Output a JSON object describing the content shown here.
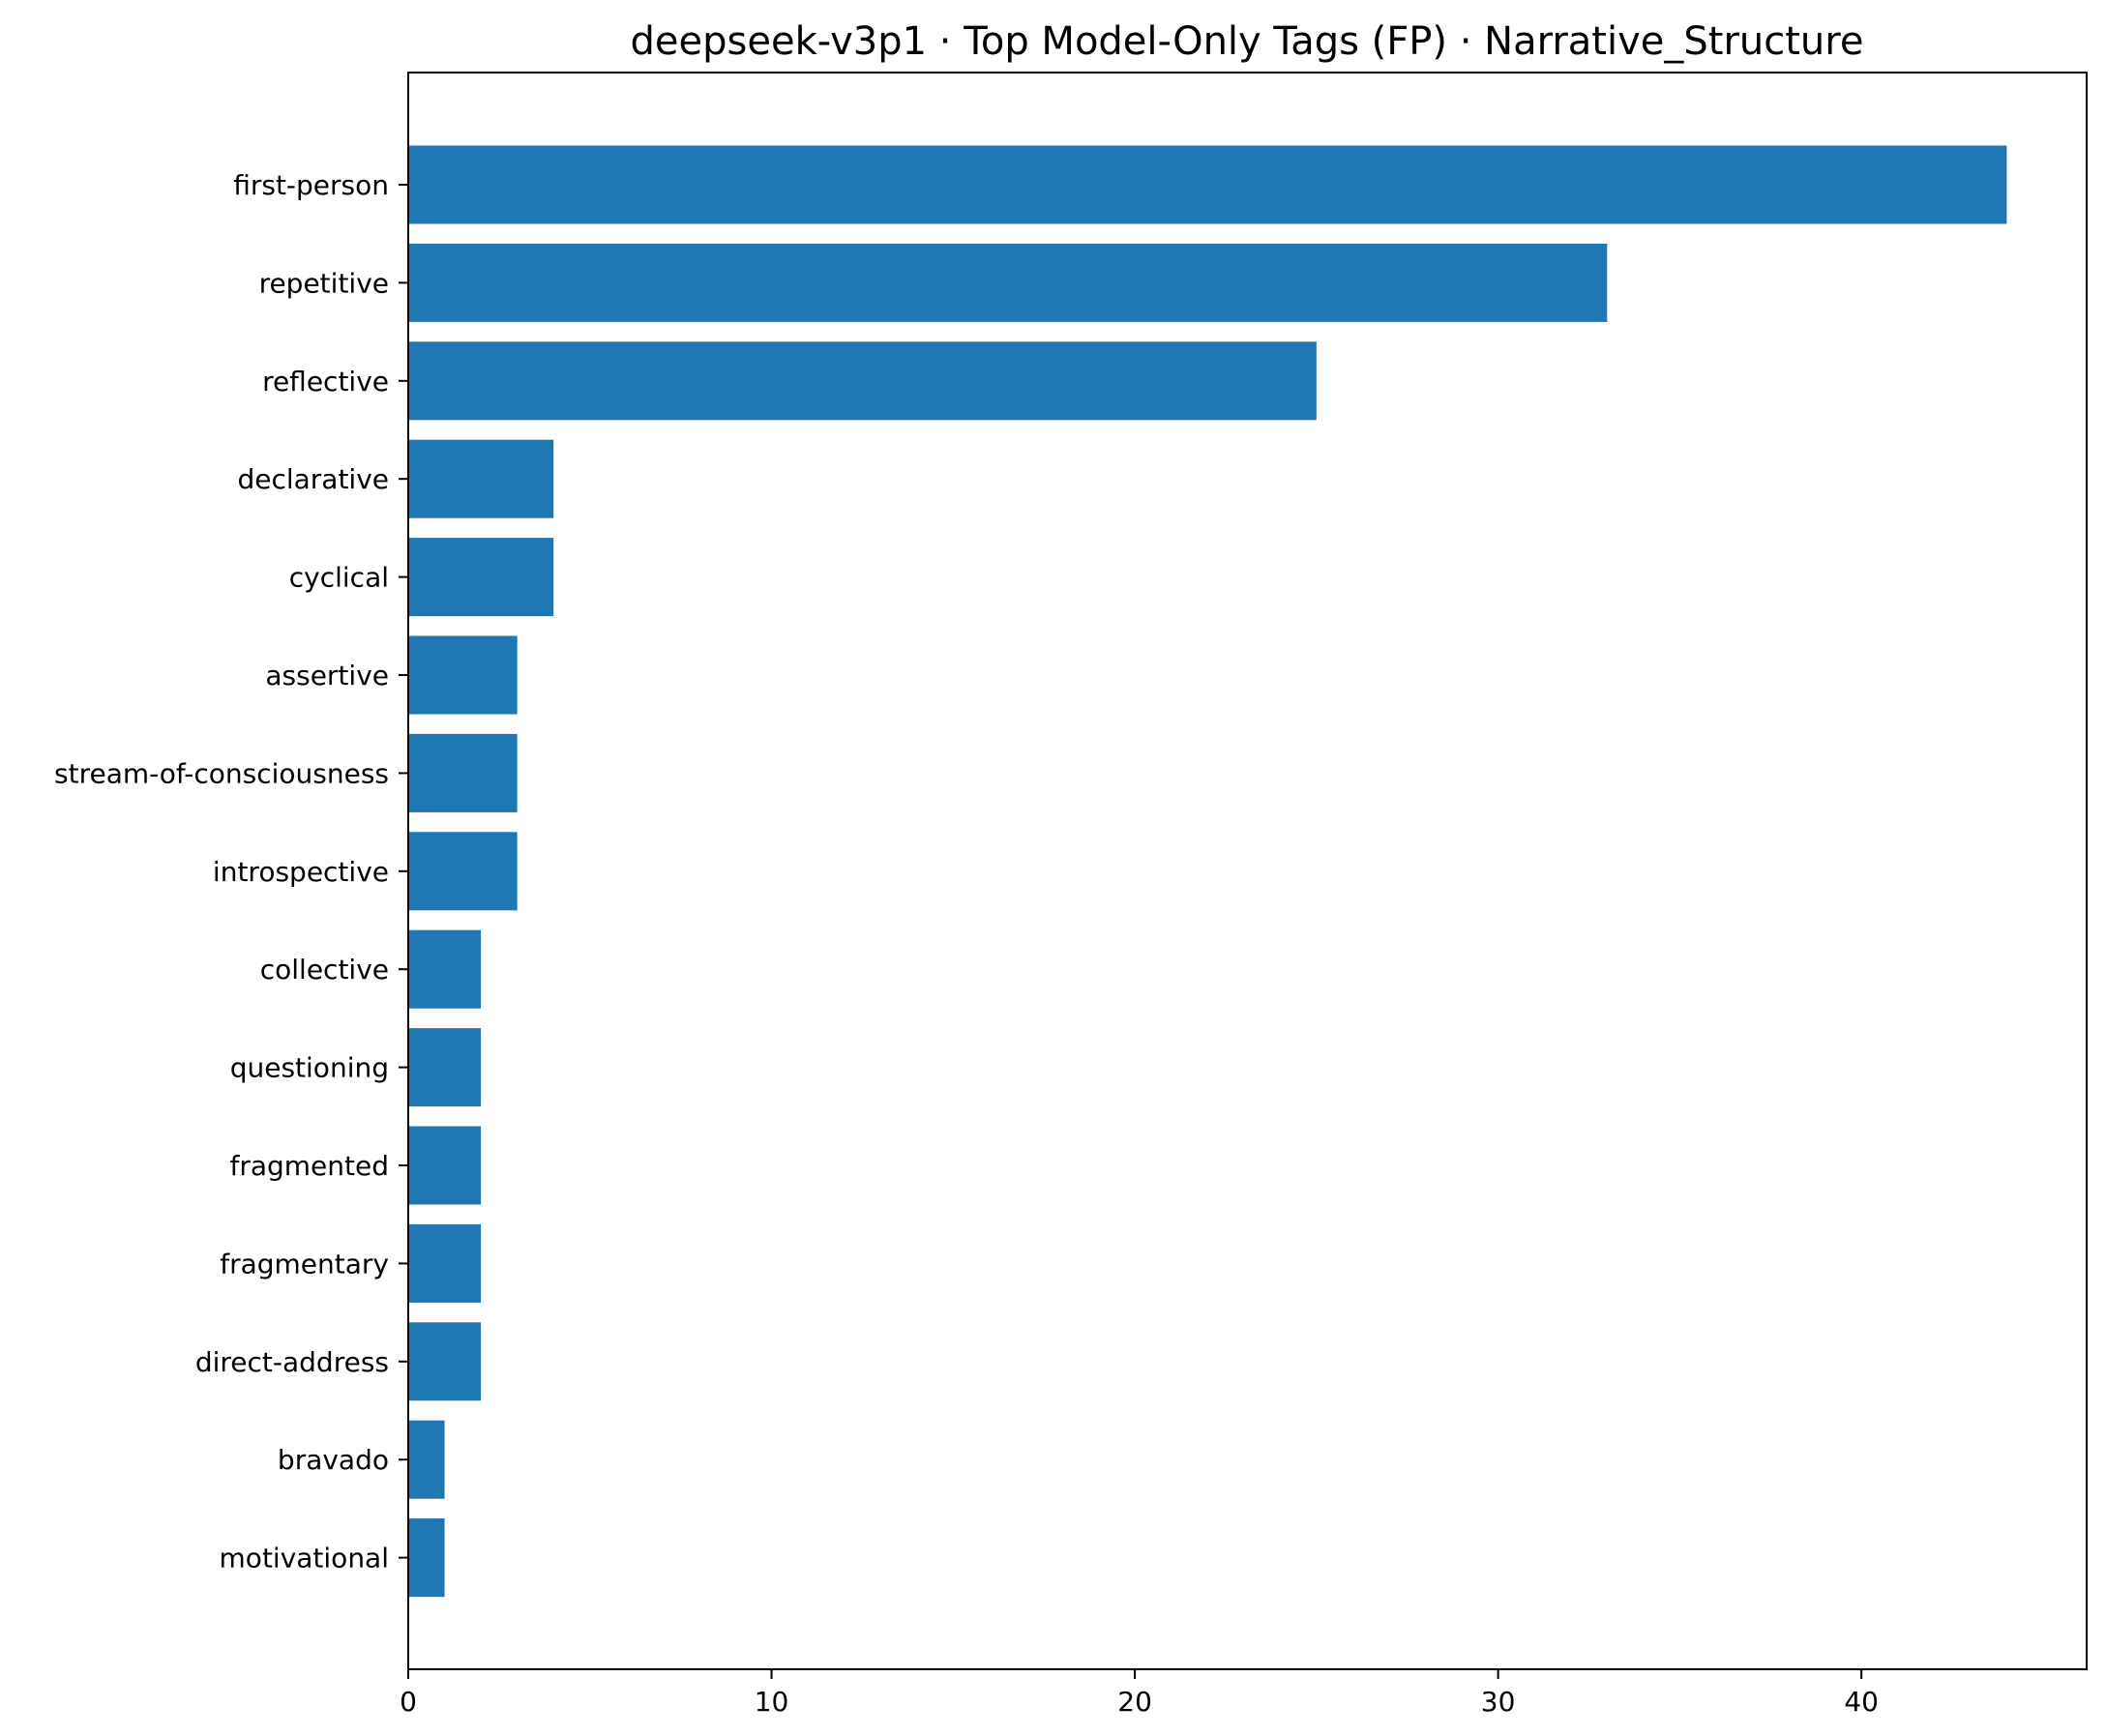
{
  "chart_data": {
    "type": "bar",
    "orientation": "horizontal",
    "title": "deepseek-v3p1 · Top Model-Only Tags (FP) · Narrative_Structure",
    "xlabel": "",
    "ylabel": "",
    "categories": [
      "first-person",
      "repetitive",
      "reflective",
      "declarative",
      "cyclical",
      "assertive",
      "stream-of-consciousness",
      "introspective",
      "collective",
      "questioning",
      "fragmented",
      "fragmentary",
      "direct-address",
      "bravado",
      "motivational"
    ],
    "values": [
      44,
      33,
      25,
      4,
      4,
      3,
      3,
      3,
      2,
      2,
      2,
      2,
      2,
      1,
      1
    ],
    "xlim": [
      0,
      46.2
    ],
    "xticks": [
      0,
      10,
      20,
      30,
      40
    ],
    "grid": false,
    "legend": "none",
    "bar_color": "#1f77b4"
  }
}
